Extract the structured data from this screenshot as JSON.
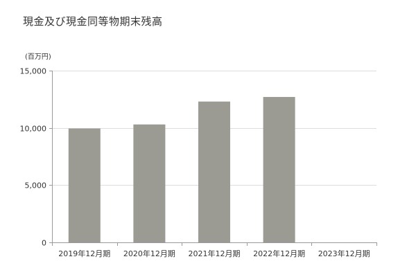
{
  "chart_data": {
    "type": "bar",
    "title": "現金及び現金同等物期末残高",
    "unit_label": "(百万円)",
    "categories": [
      "2019年12月期",
      "2020年12月期",
      "2021年12月期",
      "2022年12月期",
      "2023年12月期"
    ],
    "values": [
      9950,
      10300,
      12300,
      12700,
      null
    ],
    "ylim": [
      0,
      15000
    ],
    "yticks": [
      0,
      5000,
      10000,
      15000
    ],
    "ytick_labels": [
      "0",
      "5,000",
      "10,000",
      "15,000"
    ],
    "grid": true,
    "legend": "none",
    "bar_color": "#9b9b93",
    "grid_color": "#dddddd",
    "axis_color": "#999999"
  }
}
